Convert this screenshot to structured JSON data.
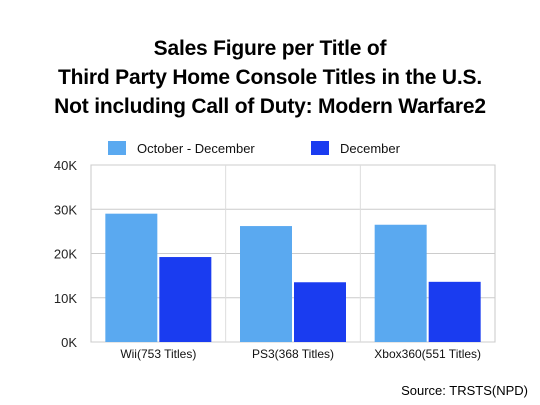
{
  "chart_data": {
    "type": "bar",
    "title_lines": [
      "Sales Figure per Title of",
      "Third Party Home Console Titles in the U.S.",
      "Not including Call of Duty: Modern Warfare2"
    ],
    "categories": [
      "Wii(753 Titles)",
      "PS3(368 Titles)",
      "Xbox360(551 Titles)"
    ],
    "series": [
      {
        "name": "October - December",
        "color": "#5aa9f0",
        "values": [
          29000,
          26200,
          26500
        ]
      },
      {
        "name": "December",
        "color": "#1a3cf0",
        "values": [
          19200,
          13500,
          13600
        ]
      }
    ],
    "ylim": [
      0,
      40000
    ],
    "yticks": [
      0,
      10000,
      20000,
      30000,
      40000
    ],
    "ytick_labels": [
      "0K",
      "10K",
      "20K",
      "30K",
      "40K"
    ],
    "grid": true,
    "legend_position": "top",
    "source": "Source: TRSTS(NPD)"
  }
}
